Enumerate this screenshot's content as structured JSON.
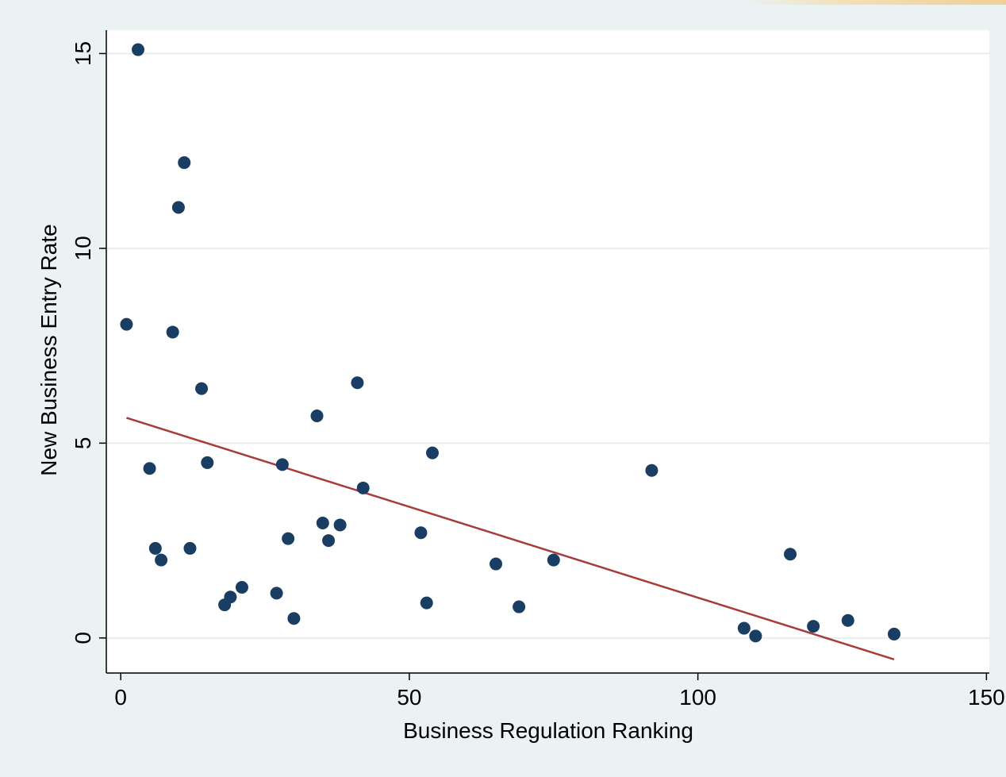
{
  "chart_data": {
    "type": "scatter",
    "title": "",
    "xlabel": "Business Regulation Ranking",
    "ylabel": "New Business Entry Rate",
    "xlim": [
      -2.5,
      150.5
    ],
    "ylim": [
      -0.9,
      15.6
    ],
    "xticks": [
      0,
      50,
      100,
      150
    ],
    "yticks": [
      0,
      5,
      10,
      15
    ],
    "grid": "horizontal",
    "legend": "none",
    "colors": {
      "background": "#eaf2f3",
      "plot_background": "#ffffff",
      "gridline": "#e6eef0",
      "marker": "#1a3e63",
      "fit_line": "#a83b3b"
    },
    "series": [
      {
        "type": "scatter",
        "points": [
          [
            1,
            8.05
          ],
          [
            3,
            15.1
          ],
          [
            5,
            4.35
          ],
          [
            6,
            2.3
          ],
          [
            7,
            2.0
          ],
          [
            9,
            7.85
          ],
          [
            10,
            11.05
          ],
          [
            11,
            12.2
          ],
          [
            12,
            2.3
          ],
          [
            14,
            6.4
          ],
          [
            15,
            4.5
          ],
          [
            18,
            0.85
          ],
          [
            19,
            1.05
          ],
          [
            21,
            1.3
          ],
          [
            27,
            1.15
          ],
          [
            28,
            4.45
          ],
          [
            29,
            2.55
          ],
          [
            30,
            0.5
          ],
          [
            34,
            5.7
          ],
          [
            35,
            2.95
          ],
          [
            36,
            2.5
          ],
          [
            38,
            2.9
          ],
          [
            41,
            6.55
          ],
          [
            42,
            3.85
          ],
          [
            52,
            2.7
          ],
          [
            53,
            0.9
          ],
          [
            54,
            4.75
          ],
          [
            65,
            1.9
          ],
          [
            69,
            0.8
          ],
          [
            75,
            2.0
          ],
          [
            92,
            4.3
          ],
          [
            108,
            0.25
          ],
          [
            110,
            0.05
          ],
          [
            116,
            2.15
          ],
          [
            120,
            0.3
          ],
          [
            126,
            0.45
          ],
          [
            134,
            0.1
          ]
        ]
      },
      {
        "type": "line",
        "points": [
          [
            1,
            5.65
          ],
          [
            134,
            -0.55
          ]
        ]
      }
    ]
  }
}
